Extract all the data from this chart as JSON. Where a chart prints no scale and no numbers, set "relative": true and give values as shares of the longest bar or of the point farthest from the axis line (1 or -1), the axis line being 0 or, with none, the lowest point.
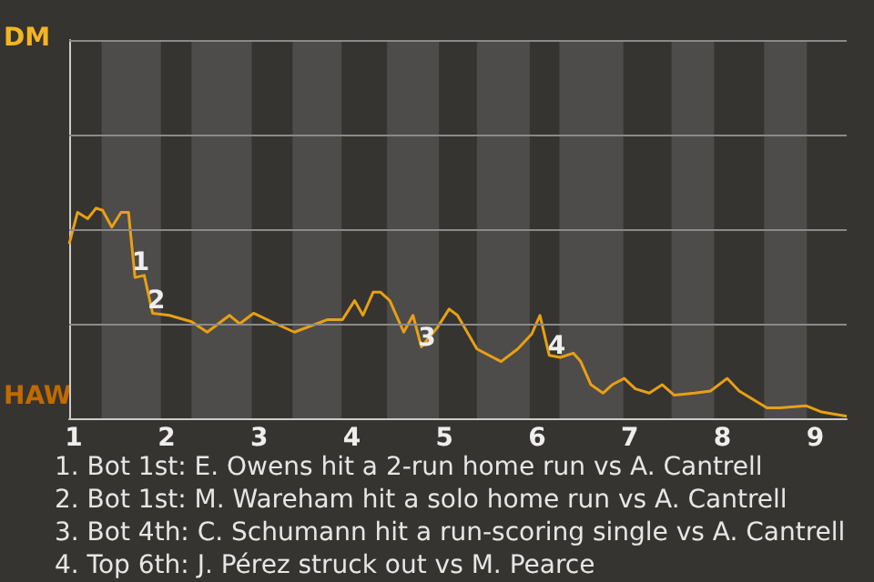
{
  "chart_data": {
    "type": "line",
    "relative": true,
    "x": [
      0.95,
      1.04,
      1.15,
      1.24,
      1.31,
      1.41,
      1.51,
      1.59,
      1.66,
      1.76,
      1.85,
      2.03,
      2.27,
      2.44,
      2.68,
      2.79,
      2.94,
      3.18,
      3.38,
      3.74,
      3.9,
      4.03,
      4.12,
      4.23,
      4.31,
      4.41,
      4.56,
      4.66,
      4.75,
      4.92,
      5.05,
      5.14,
      5.35,
      5.61,
      5.79,
      5.94,
      6.03,
      6.13,
      6.25,
      6.39,
      6.47,
      6.58,
      6.71,
      6.81,
      6.94,
      7.06,
      7.21,
      7.35,
      7.48,
      7.7,
      7.87,
      8.05,
      8.18,
      8.48,
      8.62,
      8.9,
      9.07,
      9.34
    ],
    "series": [
      {
        "color": "#e8a014",
        "values": [
          0.83,
          0.98,
          0.95,
          1,
          0.99,
          0.91,
          0.98,
          0.98,
          0.67,
          0.68,
          0.5,
          0.49,
          0.46,
          0.41,
          0.49,
          0.45,
          0.5,
          0.45,
          0.41,
          0.47,
          0.47,
          0.56,
          0.49,
          0.6,
          0.6,
          0.56,
          0.41,
          0.49,
          0.34,
          0.43,
          0.52,
          0.49,
          0.33,
          0.27,
          0.33,
          0.4,
          0.49,
          0.3,
          0.29,
          0.31,
          0.27,
          0.16,
          0.12,
          0.16,
          0.19,
          0.14,
          0.12,
          0.16,
          0.11,
          0.12,
          0.13,
          0.19,
          0.13,
          0.05,
          0.05,
          0.06,
          0.03,
          0.01
        ]
      }
    ],
    "xlim": [
      0.95,
      9.34
    ],
    "xticks": [
      1,
      2,
      3,
      4,
      5,
      6,
      7,
      8,
      9
    ],
    "ref_lines": [
      {
        "axis": "y",
        "value": 0.45,
        "color": "#8a8a8a",
        "line_style": "solid"
      },
      {
        "axis": "y",
        "value": 0.9,
        "color": "#8a8a8a",
        "line_style": "solid"
      },
      {
        "axis": "y",
        "value": 1.35,
        "color": "#8a8a8a",
        "line_style": "solid"
      },
      {
        "axis": "y",
        "value": 1.8,
        "color": "#8a8a8a",
        "line_style": "solid"
      }
    ],
    "marker": "none",
    "bands": [
      {
        "axis": "x",
        "from": 1.3,
        "to": 1.94,
        "color": "#4d4c4a"
      },
      {
        "axis": "x",
        "from": 2.27,
        "to": 2.92,
        "color": "#4d4c4a"
      },
      {
        "axis": "x",
        "from": 3.36,
        "to": 3.89,
        "color": "#4d4c4a"
      },
      {
        "axis": "x",
        "from": 4.38,
        "to": 4.94,
        "color": "#4d4c4a"
      },
      {
        "axis": "x",
        "from": 5.35,
        "to": 5.92,
        "color": "#4d4c4a"
      },
      {
        "axis": "x",
        "from": 6.24,
        "to": 6.93,
        "color": "#4d4c4a"
      },
      {
        "axis": "x",
        "from": 7.45,
        "to": 7.91,
        "color": "#4d4c4a"
      },
      {
        "axis": "x",
        "from": 8.45,
        "to": 8.91,
        "color": "#4d4c4a"
      }
    ],
    "annotations": [
      "DM",
      "HAW",
      {
        "text": "1",
        "x": 1.72,
        "y": 0.74
      },
      {
        "text": "2",
        "x": 1.89,
        "y": 0.56
      },
      {
        "text": "3",
        "x": 4.81,
        "y": 0.38
      },
      {
        "text": "4",
        "x": 6.21,
        "y": 0.34
      },
      "1. Bot 1st: E. Owens hit a 2-run home run vs A. Cantrell",
      "2. Bot 1st: M. Wareham hit a solo home run vs A. Cantrell",
      "3. Bot 4th: C. Schumann hit a run-scoring single vs A. Cantrell",
      "4. Top 6th: J. Pérez struck out vs M. Pearce"
    ]
  }
}
